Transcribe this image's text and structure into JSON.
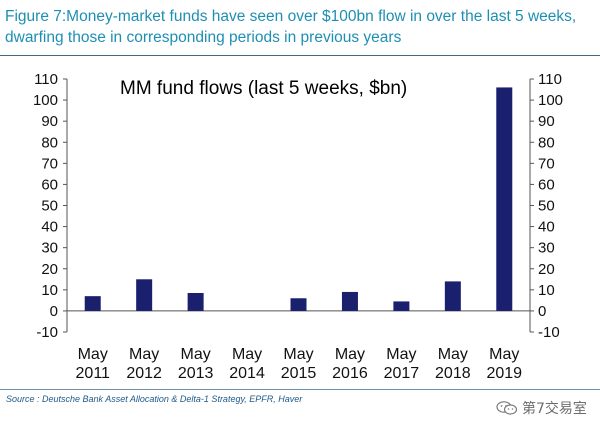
{
  "figure": {
    "title": "Figure 7:Money-market funds have seen over $100bn flow in over the last 5 weeks, dwarfing those in corresponding periods in previous years",
    "source": "Source : Deutsche Bank Asset Allocation & Delta-1 Strategy, EPFR, Haver"
  },
  "watermark": {
    "text": "第7交易室",
    "icon": "wechat-icon"
  },
  "colors": {
    "bar": "#1a1f6e",
    "title": "#1e8fb3",
    "axis": "#555555"
  },
  "chart_data": {
    "type": "bar",
    "title": "MM fund flows (last 5 weeks, $bn)",
    "categories": [
      [
        "May",
        "2011"
      ],
      [
        "May",
        "2012"
      ],
      [
        "May",
        "2013"
      ],
      [
        "May",
        "2014"
      ],
      [
        "May",
        "2015"
      ],
      [
        "May",
        "2016"
      ],
      [
        "May",
        "2017"
      ],
      [
        "May",
        "2018"
      ],
      [
        "May",
        "2019"
      ]
    ],
    "values": [
      7,
      15,
      8.5,
      0,
      6,
      9,
      4.5,
      14,
      106
    ],
    "ylim": [
      -10,
      110
    ],
    "yticks": [
      -10,
      0,
      10,
      20,
      30,
      40,
      50,
      60,
      70,
      80,
      90,
      100,
      110
    ],
    "xlabel": "",
    "ylabel": "",
    "grid": false,
    "y_axis_both_sides": true
  }
}
